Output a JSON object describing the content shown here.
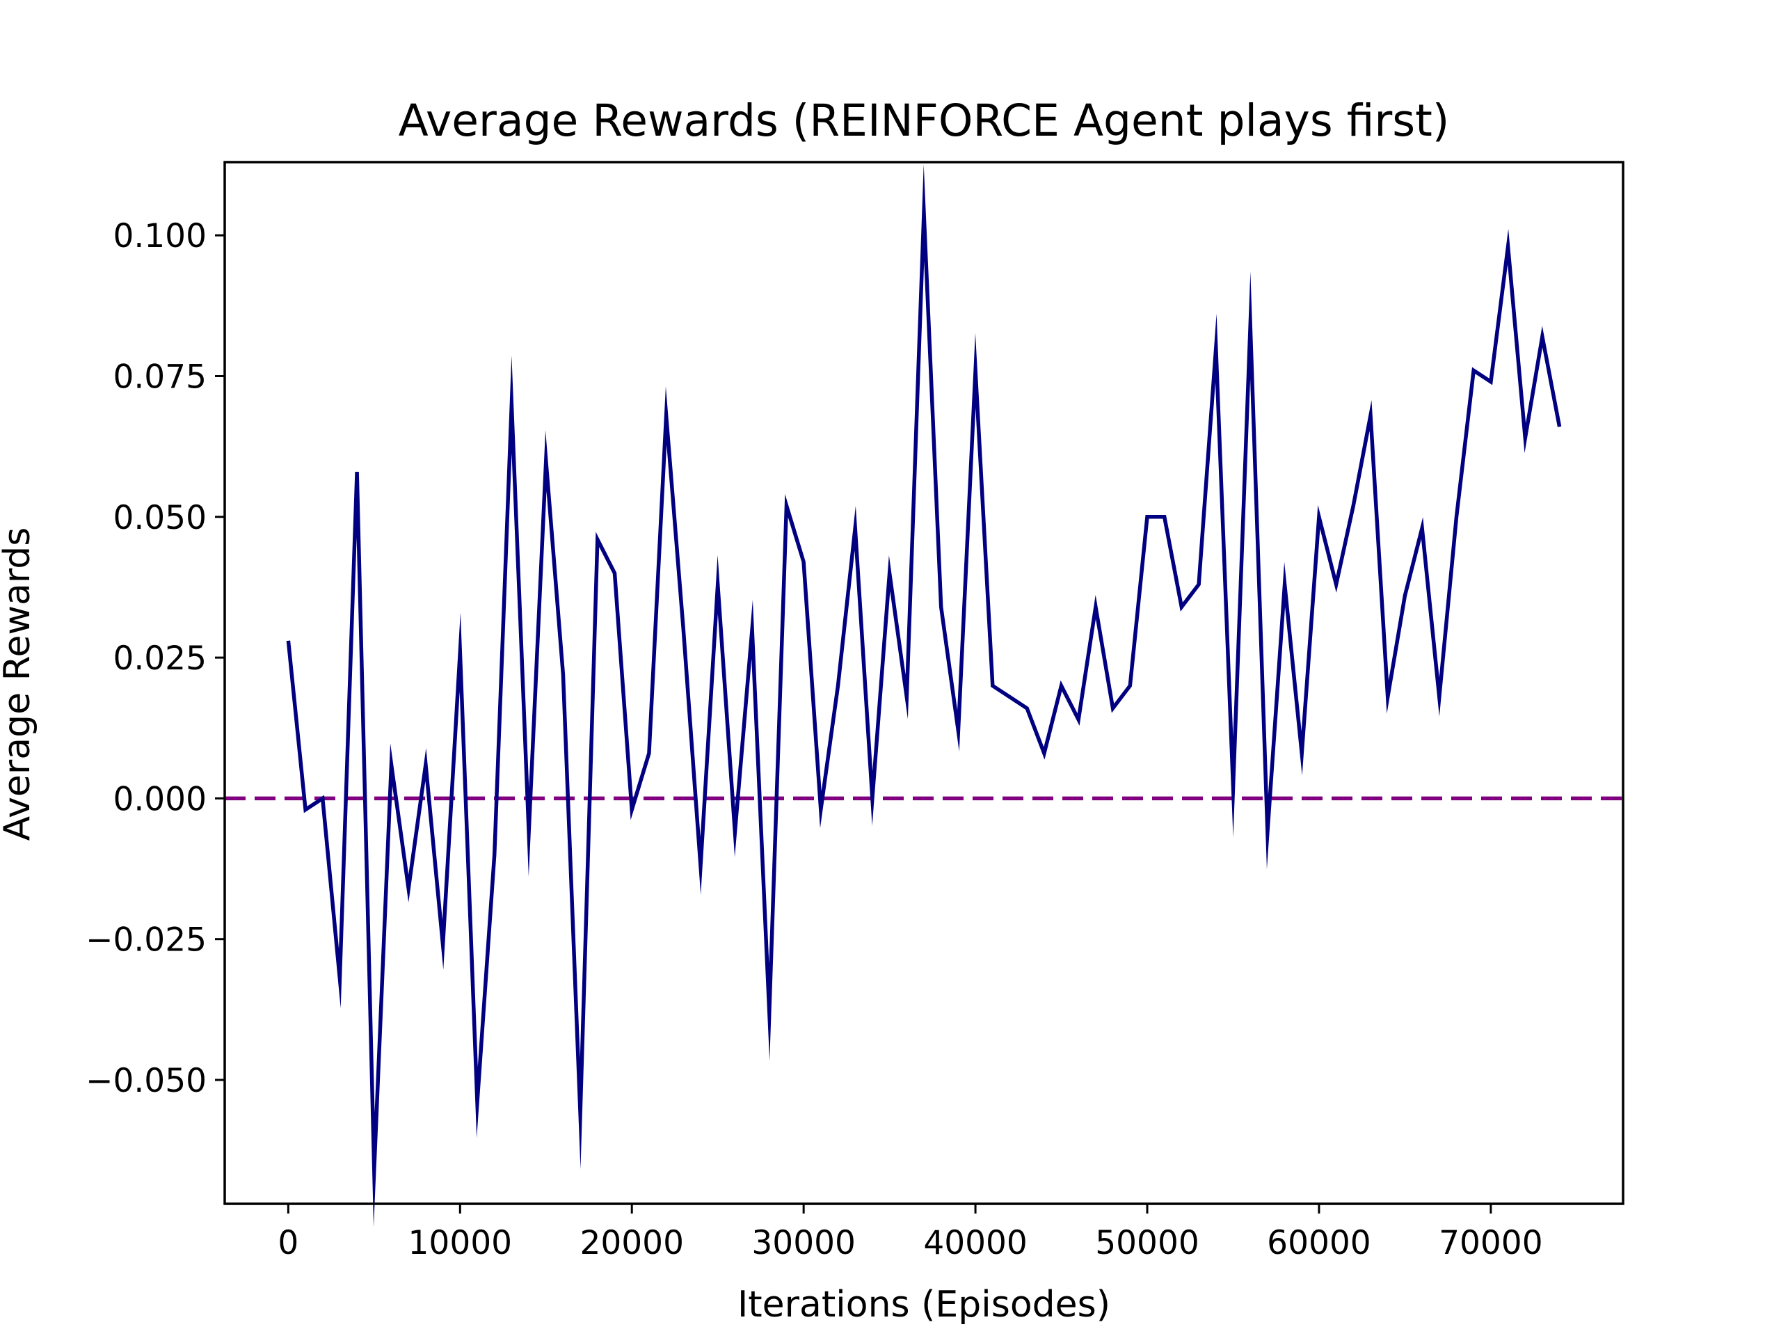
{
  "chart_data": {
    "type": "line",
    "title": "Average Rewards (REINFORCE Agent plays first)",
    "xlabel": "Iterations (Episodes)",
    "ylabel": "Average Rewards",
    "xlim": [
      -3700,
      77700
    ],
    "ylim": [
      -0.072,
      0.113
    ],
    "xticks": [
      0,
      10000,
      20000,
      30000,
      40000,
      50000,
      60000,
      70000
    ],
    "xtick_labels": [
      "0",
      "10000",
      "20000",
      "30000",
      "40000",
      "50000",
      "60000",
      "70000"
    ],
    "yticks": [
      -0.05,
      -0.025,
      0.0,
      0.025,
      0.05,
      0.075,
      0.1
    ],
    "ytick_labels": [
      "−0.050",
      "−0.025",
      "0.000",
      "0.025",
      "0.050",
      "0.075",
      "0.100"
    ],
    "grid": false,
    "series": [
      {
        "color": "#000080",
        "x": [
          0,
          1000,
          2000,
          3000,
          4000,
          5000,
          6000,
          7000,
          8000,
          9000,
          10000,
          11000,
          12000,
          13000,
          14000,
          15000,
          16000,
          17000,
          18000,
          19000,
          20000,
          21000,
          22000,
          23000,
          24000,
          25000,
          26000,
          27000,
          28000,
          29000,
          30000,
          31000,
          32000,
          33000,
          34000,
          35000,
          36000,
          37000,
          38000,
          39000,
          40000,
          41000,
          42000,
          43000,
          44000,
          45000,
          46000,
          47000,
          48000,
          49000,
          50000,
          51000,
          52000,
          53000,
          54000,
          55000,
          56000,
          57000,
          58000,
          59000,
          60000,
          61000,
          62000,
          63000,
          64000,
          65000,
          66000,
          67000,
          68000,
          69000,
          70000,
          71000,
          72000,
          73000,
          74000
        ],
        "values": [
          0.028,
          -0.002,
          0.0,
          -0.032,
          0.058,
          -0.066,
          0.006,
          -0.016,
          0.006,
          -0.026,
          0.026,
          -0.054,
          -0.01,
          0.07,
          -0.006,
          0.06,
          0.022,
          -0.056,
          0.046,
          0.04,
          -0.002,
          0.008,
          0.068,
          0.03,
          -0.012,
          0.038,
          -0.006,
          0.03,
          -0.038,
          0.052,
          0.042,
          -0.002,
          0.02,
          0.048,
          0.0,
          0.04,
          0.018,
          0.104,
          0.034,
          0.012,
          0.076,
          0.02,
          0.018,
          0.016,
          0.008,
          0.02,
          0.014,
          0.034,
          0.016,
          0.02,
          0.05,
          0.05,
          0.034,
          0.038,
          0.08,
          0.002,
          0.084,
          -0.006,
          0.038,
          0.008,
          0.05,
          0.038,
          0.052,
          0.068,
          0.018,
          0.036,
          0.048,
          0.018,
          0.05,
          0.076,
          0.074,
          0.098,
          0.064,
          0.082,
          0.066
        ]
      }
    ],
    "hlines": [
      {
        "y": 0.0,
        "color": "#800080",
        "style": "dashed"
      }
    ]
  }
}
